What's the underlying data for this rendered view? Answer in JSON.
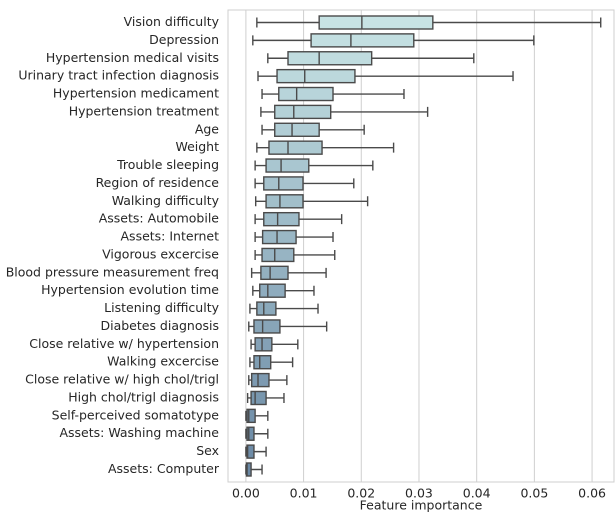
{
  "chart_data": {
    "type": "boxplot",
    "orientation": "horizontal",
    "xlabel": "Feature importance",
    "categories": [
      "Vision difficulty",
      "Depression",
      "Hypertension medical visits",
      "Urinary tract infection diagnosis",
      "Hypertension medicament",
      "Hypertension treatment",
      "Age",
      "Weight",
      "Trouble sleeping",
      "Region of residence",
      "Walking difficulty",
      "Assets: Automobile",
      "Assets: Internet",
      "Vigorous excercise",
      "Blood pressure measurement freq",
      "Hypertension evolution time",
      "Listening difficulty",
      "Diabetes diagnosis",
      "Close relative w/ hypertension",
      "Walking excercise",
      "Close relative w/ high chol/trigl",
      "High chol/trigl diagnosis",
      "Self-perceived somatotype",
      "Assets: Washing machine",
      "Sex",
      "Assets: Computer"
    ],
    "whisker_low": [
      0.0019,
      0.0012,
      0.0038,
      0.0021,
      0.0028,
      0.0026,
      0.0028,
      0.0019,
      0.0016,
      0.0016,
      0.0017,
      0.0016,
      0.0016,
      0.0016,
      0.001,
      0.0012,
      0.0007,
      0.0005,
      0.0009,
      0.0007,
      0.0005,
      0.0003,
      0.0,
      0.0,
      0.0,
      0.0
    ],
    "q1": [
      0.0127,
      0.0113,
      0.0073,
      0.0054,
      0.0057,
      0.005,
      0.005,
      0.004,
      0.0035,
      0.0031,
      0.0035,
      0.0031,
      0.0029,
      0.0028,
      0.0026,
      0.0024,
      0.0019,
      0.0014,
      0.0016,
      0.0014,
      0.001,
      0.0009,
      0.0002,
      0.0002,
      0.0002,
      0.0001
    ],
    "median": [
      0.0201,
      0.0182,
      0.0127,
      0.0102,
      0.0088,
      0.0083,
      0.008,
      0.0073,
      0.0061,
      0.0057,
      0.0059,
      0.0055,
      0.0054,
      0.005,
      0.0042,
      0.0038,
      0.0031,
      0.0029,
      0.0028,
      0.0024,
      0.0021,
      0.0016,
      0.0005,
      0.0005,
      0.0003,
      0.0002
    ],
    "q3": [
      0.0324,
      0.0291,
      0.0218,
      0.0189,
      0.0151,
      0.0147,
      0.0127,
      0.0132,
      0.0109,
      0.0099,
      0.0099,
      0.0092,
      0.0087,
      0.0083,
      0.0073,
      0.0068,
      0.0052,
      0.0059,
      0.0045,
      0.0043,
      0.004,
      0.0035,
      0.0016,
      0.0014,
      0.0014,
      0.0009
    ],
    "whisker_high": [
      0.0615,
      0.0499,
      0.0395,
      0.0463,
      0.0274,
      0.0315,
      0.0205,
      0.0256,
      0.022,
      0.0187,
      0.0211,
      0.0166,
      0.0151,
      0.0154,
      0.0139,
      0.0118,
      0.0125,
      0.014,
      0.009,
      0.0081,
      0.0071,
      0.0066,
      0.0038,
      0.0038,
      0.0035,
      0.0028
    ],
    "palette": [
      "#c7e3e4",
      "#6a88a4"
    ],
    "line_color": "#4a4a4a",
    "xlim": [
      -0.0031,
      0.0638
    ],
    "xticks": [
      {
        "value": 0,
        "label": "0.00"
      },
      0.01,
      0.02,
      0.03,
      0.04,
      0.05,
      0.06
    ],
    "grid": true
  }
}
